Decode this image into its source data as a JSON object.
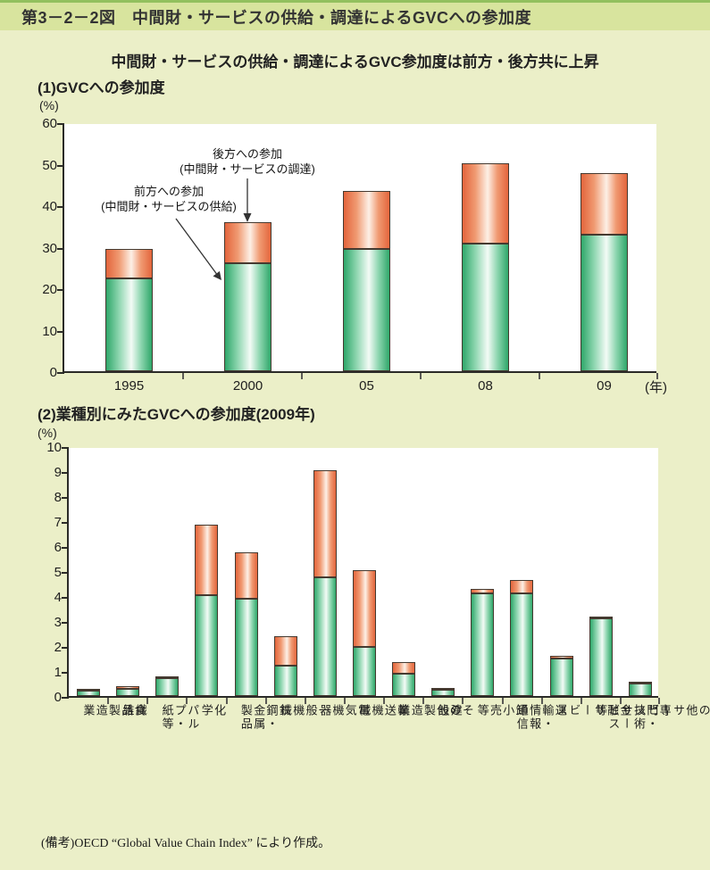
{
  "page": {
    "figure_title": "第3－2－2図　中間財・サービスの供給・調達によるGVCへの参加度",
    "subtitle": "中間財・サービスの供給・調達によるGVC参加度は前方・後方共に上昇",
    "note": "(備考)OECD “Global Value Chain Index” により作成。"
  },
  "colors": {
    "page_background": "#EBEFC8",
    "header_band": "#D8E49E",
    "header_band_border": "#92C05E",
    "forward_green": "#2FA76A",
    "backward_orange": "#E3653C",
    "axis": "#2B2B28",
    "plot_background": "#FFFFFF"
  },
  "chart_data": [
    {
      "type": "bar",
      "stacked": true,
      "title": "(1)GVCへの参加度",
      "unit_label": "(%)",
      "x_unit_label": "(年)",
      "categories": [
        "1995",
        "2000",
        "05",
        "08",
        "09"
      ],
      "series": [
        {
          "name": "前方への参加(中間財・サービスの供給)",
          "color_key": "forward_green",
          "values": [
            22.3,
            26.0,
            29.5,
            30.7,
            33.0
          ]
        },
        {
          "name": "後方への参加(中間財・サービスの調達)",
          "color_key": "backward_orange",
          "values": [
            7.1,
            10.0,
            13.9,
            19.5,
            14.8
          ]
        }
      ],
      "totals": [
        29.4,
        36.0,
        43.4,
        50.2,
        47.8
      ],
      "ylim": [
        0,
        60
      ],
      "ytick_step": 10,
      "grid": false,
      "legend": "none",
      "annotations": [
        {
          "line1": "後方への参加",
          "line2": "(中間財・サービスの調達)",
          "points_to": "backward segment of 2000 bar"
        },
        {
          "line1": "前方への参加",
          "line2": "(中間財・サービスの供給)",
          "points_to": "forward segment of 2000 bar"
        }
      ]
    },
    {
      "type": "bar",
      "stacked": true,
      "title": "(2)業種別にみたGVCへの参加度(2009年)",
      "unit_label": "(%)",
      "categories": [
        "食品製造業",
        "繊維",
        "パルプ・紙等",
        "化学",
        "鉄鋼・金属製品",
        "一般機械",
        "電気機器",
        "輸送機械",
        "その他製造業",
        "建設",
        "卸小売等",
        "運輸・情報通信",
        "金融サービス",
        "専門・技術サービス等",
        "その他サービス"
      ],
      "series": [
        {
          "name": "前方への参加(中間財・サービスの供給)",
          "color_key": "forward_green",
          "values": [
            0.2,
            0.3,
            0.7,
            4.05,
            3.9,
            1.2,
            4.75,
            1.95,
            0.9,
            0.25,
            4.1,
            4.1,
            1.5,
            3.1,
            0.5
          ]
        },
        {
          "name": "後方への参加(中間財・サービスの調達)",
          "color_key": "backward_orange",
          "values": [
            0.05,
            0.1,
            0.05,
            2.8,
            1.85,
            1.2,
            4.3,
            3.1,
            0.45,
            0.05,
            0.2,
            0.55,
            0.1,
            0.05,
            0.05
          ]
        }
      ],
      "totals": [
        0.25,
        0.4,
        0.75,
        6.85,
        5.75,
        2.4,
        9.05,
        5.05,
        1.35,
        0.3,
        4.3,
        4.65,
        1.6,
        3.15,
        0.55
      ],
      "ylim": [
        0,
        10
      ],
      "ytick_step": 1,
      "grid": false,
      "legend": "none"
    }
  ]
}
